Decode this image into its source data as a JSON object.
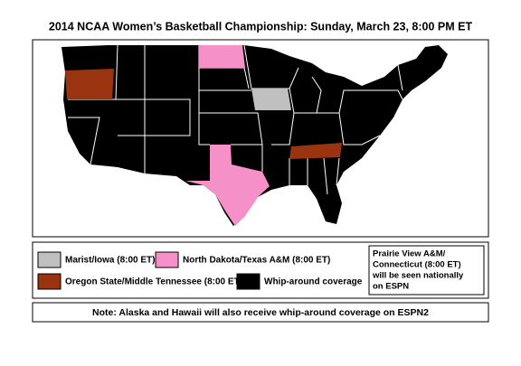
{
  "header": {
    "title": "2014 NCAA Women’s Basketball Championship: Sunday, March 23, 8:00 PM ET"
  },
  "legend": {
    "items": [
      {
        "label": "Marist/Iowa (8:00 ET)",
        "color": "#c0c0c0"
      },
      {
        "label": "North Dakota/Texas A&M (8:00 ET)",
        "color": "#f590c8"
      },
      {
        "label": "Oregon State/Middle Tennessee (8:00 ET)",
        "color": "#9a3410"
      },
      {
        "label": "Whip-around coverage",
        "color": "#000000"
      }
    ],
    "side_note": [
      "Prairie View A&M/",
      "Connecticut (8:00 ET)",
      "will be seen nationally",
      "on ESPN"
    ]
  },
  "footer": {
    "note": "Note:  Alaska and Hawaii will also receive whip-around coverage on ESPN2"
  }
}
